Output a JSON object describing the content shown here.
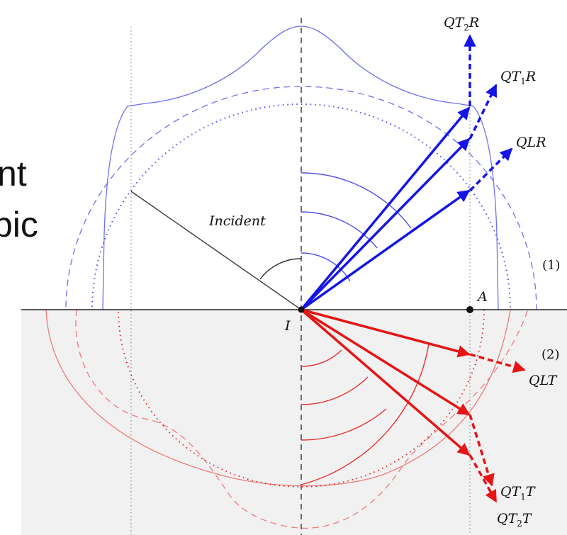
{
  "slide_fragments": {
    "line1": "nt",
    "line2": "pic"
  },
  "labels": {
    "qt2r": "QT",
    "qt2r_sub": "2",
    "qt2r_end": "R",
    "qt1r": "QT",
    "qt1r_sub": "1",
    "qt1r_end": "R",
    "qlr": "QLR",
    "incident": "Incident",
    "point_i": "I",
    "point_a": "A",
    "medium1": "(1)",
    "medium2": "(2)",
    "qlt": "QLT",
    "qt1t": "QT",
    "qt1t_sub": "1",
    "qt1t_end": "T",
    "qt2t": "QT",
    "qt2t_sub": "2",
    "qt2t_end": "T"
  },
  "colors": {
    "reflected": "#1414e6",
    "transmitted": "#e61414",
    "reflected_light": "#6f6ff0",
    "transmitted_light": "#ef7a7a",
    "lower_medium_fill": "#f1f1f1",
    "incident": "#3a3a3a"
  }
}
